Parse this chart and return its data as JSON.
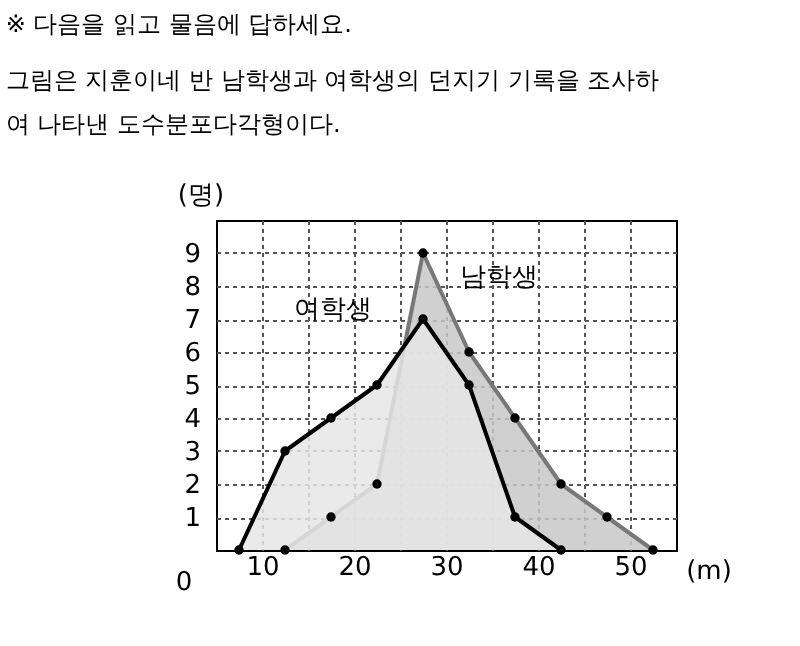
{
  "chart_data": {
    "type": "area",
    "title": "※ 다음을 읽고 물음에 답하세요.",
    "subtitle": "그림은 지훈이네 반 남학생과 여학생의 던지기 기록을 조사하여 나타낸 도수분포다각형이다.",
    "xlabel": "(m)",
    "ylabel": "(명)",
    "annotations": [
      "0"
    ],
    "series": [
      {
        "name": "남학생",
        "color": "#c8c8c8",
        "x": [
          12.5,
          17.5,
          22.5,
          27.5,
          32.5,
          37.5,
          42.5,
          47.5,
          52.5
        ],
        "values": [
          0,
          1,
          2,
          9,
          6,
          4,
          2,
          1,
          0
        ]
      },
      {
        "name": "여학생",
        "color": "#e6e6e6",
        "x": [
          7.5,
          12.5,
          17.5,
          22.5,
          27.5,
          32.5,
          37.5,
          42.5
        ],
        "values": [
          0,
          3,
          4,
          5,
          7,
          5,
          1,
          0
        ]
      }
    ],
    "xlim": [
      5,
      55
    ],
    "xticks": [
      10,
      {
        "value": 15,
        "label": null
      },
      20,
      {
        "value": 25,
        "label": null
      },
      30,
      {
        "value": 35,
        "label": null
      },
      40,
      {
        "value": 45,
        "label": null
      },
      50
    ],
    "ylim": [
      0,
      10
    ],
    "yticks": [
      1,
      2,
      3,
      4,
      5,
      6,
      7,
      8,
      9
    ],
    "grid": true,
    "marker": "circle",
    "line_style": "solid"
  }
}
